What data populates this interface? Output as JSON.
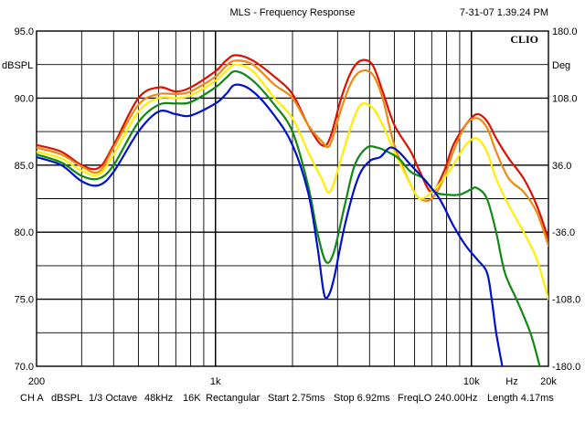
{
  "header": {
    "title": "MLS - Frequency Response",
    "timestamp": "7-31-07 1.39.24 PM",
    "brand": "CLIO"
  },
  "footer": {
    "channel": "CH A",
    "unit": "dBSPL",
    "smoothing": "1/3 Octave",
    "sample_rate": "48kHz",
    "size": "16K",
    "window": "Rectangular",
    "start": "Start 2.75ms",
    "stop": "Stop 6.92ms",
    "freqlo": "FreqLO 240.00Hz",
    "length": "Length 4.17ms"
  },
  "chart_data": {
    "type": "line",
    "title": "MLS - Frequency Response",
    "xlabel": "Hz",
    "ylabel": "dBSPL",
    "y2label": "Deg",
    "xscale": "log",
    "xlim": [
      200,
      20000
    ],
    "ylim": [
      70,
      95
    ],
    "y2lim": [
      -180,
      180
    ],
    "grid": true,
    "legend": "none",
    "x_tick_labels": [
      {
        "value": 200,
        "label": "200"
      },
      {
        "value": 1000,
        "label": "1k"
      },
      {
        "value": 10000,
        "label": "10k"
      },
      {
        "value": 20000,
        "label": "20k"
      }
    ],
    "y_tick_labels": [
      "95.0",
      "90.0",
      "85.0",
      "80.0",
      "75.0",
      "70.0"
    ],
    "y2_tick_labels": [
      "180.0",
      "108.0",
      "36.0",
      "-36.0",
      "-108.0",
      "-180.0"
    ],
    "series": [
      {
        "color": "#dd1100",
        "points": [
          [
            200,
            86.5
          ],
          [
            250,
            86.0
          ],
          [
            300,
            85.0
          ],
          [
            350,
            84.8
          ],
          [
            400,
            86.5
          ],
          [
            500,
            90.0
          ],
          [
            600,
            90.8
          ],
          [
            700,
            90.5
          ],
          [
            800,
            90.8
          ],
          [
            1000,
            92.0
          ],
          [
            1100,
            92.8
          ],
          [
            1200,
            93.2
          ],
          [
            1400,
            92.8
          ],
          [
            1700,
            91.6
          ],
          [
            2000,
            90.3
          ],
          [
            2300,
            88.0
          ],
          [
            2600,
            86.5
          ],
          [
            2800,
            87.0
          ],
          [
            3100,
            90.0
          ],
          [
            3400,
            92.0
          ],
          [
            3700,
            92.8
          ],
          [
            4100,
            92.5
          ],
          [
            4500,
            90.5
          ],
          [
            5000,
            88.0
          ],
          [
            5800,
            86.0
          ],
          [
            6300,
            84.5
          ],
          [
            7000,
            83.0
          ],
          [
            7800,
            84.5
          ],
          [
            8500,
            86.5
          ],
          [
            9500,
            88.0
          ],
          [
            10500,
            88.8
          ],
          [
            11500,
            88.3
          ],
          [
            12500,
            87.0
          ],
          [
            14000,
            85.5
          ],
          [
            16000,
            84.0
          ],
          [
            18000,
            82.0
          ],
          [
            20000,
            79.5
          ]
        ]
      },
      {
        "color": "#ee8811",
        "points": [
          [
            200,
            86.3
          ],
          [
            250,
            85.8
          ],
          [
            300,
            84.9
          ],
          [
            350,
            84.5
          ],
          [
            400,
            86.3
          ],
          [
            500,
            89.5
          ],
          [
            600,
            90.3
          ],
          [
            700,
            90.3
          ],
          [
            800,
            90.5
          ],
          [
            1000,
            91.6
          ],
          [
            1100,
            92.4
          ],
          [
            1200,
            92.8
          ],
          [
            1400,
            92.5
          ],
          [
            1700,
            91.0
          ],
          [
            2000,
            90.0
          ],
          [
            2300,
            88.0
          ],
          [
            2600,
            86.8
          ],
          [
            2800,
            86.5
          ],
          [
            3100,
            89.2
          ],
          [
            3400,
            91.2
          ],
          [
            3700,
            92.0
          ],
          [
            4100,
            91.8
          ],
          [
            4500,
            90.0
          ],
          [
            5000,
            86.5
          ],
          [
            5800,
            83.5
          ],
          [
            6300,
            82.5
          ],
          [
            7000,
            82.5
          ],
          [
            7800,
            84.0
          ],
          [
            8500,
            86.0
          ],
          [
            9500,
            88.0
          ],
          [
            10500,
            88.5
          ],
          [
            11500,
            87.8
          ],
          [
            12500,
            86.0
          ],
          [
            14000,
            84.0
          ],
          [
            16000,
            83.0
          ],
          [
            18000,
            81.5
          ],
          [
            20000,
            79.0
          ]
        ]
      },
      {
        "color": "#ffee00",
        "points": [
          [
            200,
            86.0
          ],
          [
            250,
            85.5
          ],
          [
            300,
            84.6
          ],
          [
            350,
            84.3
          ],
          [
            400,
            85.8
          ],
          [
            500,
            89.0
          ],
          [
            600,
            90.0
          ],
          [
            700,
            90.0
          ],
          [
            800,
            90.2
          ],
          [
            1000,
            91.3
          ],
          [
            1100,
            92.0
          ],
          [
            1200,
            92.5
          ],
          [
            1400,
            92.0
          ],
          [
            1700,
            90.0
          ],
          [
            2000,
            88.5
          ],
          [
            2300,
            86.0
          ],
          [
            2600,
            84.0
          ],
          [
            2800,
            83.0
          ],
          [
            3100,
            85.5
          ],
          [
            3400,
            88.0
          ],
          [
            3700,
            89.5
          ],
          [
            4100,
            89.3
          ],
          [
            4500,
            88.0
          ],
          [
            5000,
            86.0
          ],
          [
            5800,
            83.5
          ],
          [
            6300,
            82.5
          ],
          [
            7000,
            83.0
          ],
          [
            7800,
            84.0
          ],
          [
            8500,
            85.0
          ],
          [
            9500,
            86.5
          ],
          [
            10500,
            87.0
          ],
          [
            11500,
            86.0
          ],
          [
            12500,
            84.0
          ],
          [
            14000,
            82.0
          ],
          [
            16000,
            80.0
          ],
          [
            18000,
            78.0
          ],
          [
            20000,
            75.0
          ]
        ]
      },
      {
        "color": "#118811",
        "points": [
          [
            200,
            85.8
          ],
          [
            250,
            85.2
          ],
          [
            300,
            84.2
          ],
          [
            350,
            84.0
          ],
          [
            400,
            85.0
          ],
          [
            500,
            88.2
          ],
          [
            600,
            89.5
          ],
          [
            700,
            89.6
          ],
          [
            800,
            89.7
          ],
          [
            1000,
            90.8
          ],
          [
            1100,
            91.5
          ],
          [
            1200,
            92.0
          ],
          [
            1400,
            91.3
          ],
          [
            1700,
            89.5
          ],
          [
            2000,
            87.5
          ],
          [
            2300,
            83.5
          ],
          [
            2500,
            80.0
          ],
          [
            2700,
            77.8
          ],
          [
            2900,
            78.5
          ],
          [
            3200,
            82.0
          ],
          [
            3500,
            85.0
          ],
          [
            3900,
            86.3
          ],
          [
            4300,
            86.3
          ],
          [
            4700,
            86.0
          ],
          [
            5200,
            85.5
          ],
          [
            5800,
            84.5
          ],
          [
            6500,
            84.0
          ],
          [
            7200,
            83.0
          ],
          [
            8000,
            82.8
          ],
          [
            9000,
            82.8
          ],
          [
            10000,
            83.2
          ],
          [
            10500,
            83.3
          ],
          [
            11500,
            82.5
          ],
          [
            12500,
            80.0
          ],
          [
            13500,
            77.0
          ],
          [
            15000,
            75.0
          ],
          [
            17000,
            72.5
          ],
          [
            18500,
            70.0
          ]
        ]
      },
      {
        "color": "#0011cc",
        "points": [
          [
            200,
            85.6
          ],
          [
            250,
            85.0
          ],
          [
            300,
            83.8
          ],
          [
            350,
            83.5
          ],
          [
            400,
            84.5
          ],
          [
            500,
            87.5
          ],
          [
            600,
            89.0
          ],
          [
            700,
            88.8
          ],
          [
            800,
            88.7
          ],
          [
            1000,
            89.6
          ],
          [
            1100,
            90.3
          ],
          [
            1200,
            91.0
          ],
          [
            1400,
            90.5
          ],
          [
            1700,
            88.7
          ],
          [
            2000,
            86.5
          ],
          [
            2300,
            83.0
          ],
          [
            2500,
            79.0
          ],
          [
            2650,
            75.5
          ],
          [
            2750,
            75.2
          ],
          [
            2900,
            76.5
          ],
          [
            3200,
            80.5
          ],
          [
            3600,
            84.0
          ],
          [
            4000,
            85.3
          ],
          [
            4400,
            85.6
          ],
          [
            4800,
            86.3
          ],
          [
            5200,
            86.0
          ],
          [
            5800,
            85.0
          ],
          [
            6500,
            84.0
          ],
          [
            7500,
            82.5
          ],
          [
            8500,
            80.5
          ],
          [
            9500,
            79.0
          ],
          [
            10500,
            78.0
          ],
          [
            11500,
            77.0
          ],
          [
            12000,
            75.0
          ],
          [
            12500,
            72.5
          ],
          [
            13200,
            70.0
          ]
        ]
      }
    ]
  }
}
